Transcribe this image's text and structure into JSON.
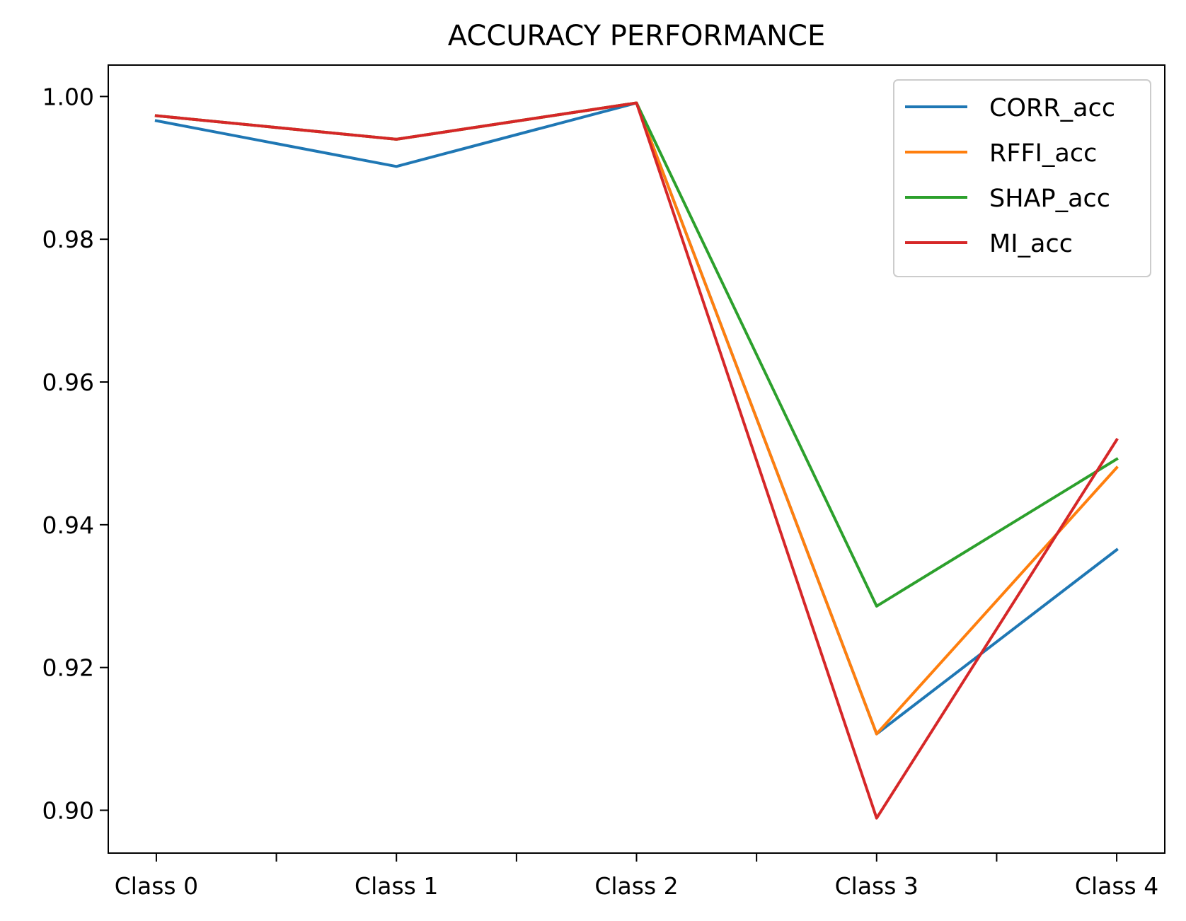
{
  "chart_data": {
    "type": "line",
    "title": "ACCURACY PERFORMANCE",
    "xlabel": "",
    "ylabel": "",
    "categories": [
      "Class 0",
      "Class 1",
      "Class 2",
      "Class 3",
      "Class 4"
    ],
    "ylim": [
      0.894,
      1.0044
    ],
    "yticks": [
      0.9,
      0.92,
      0.94,
      0.96,
      0.98,
      1.0
    ],
    "ytick_labels": [
      "0.90",
      "0.92",
      "0.94",
      "0.96",
      "0.98",
      "1.00"
    ],
    "grid": false,
    "legend_position": "top-right",
    "series": [
      {
        "name": "CORR_acc",
        "color": "#1f77b4",
        "values": [
          0.9966,
          0.9902,
          0.9991,
          0.9107,
          0.9365
        ]
      },
      {
        "name": "RFFI_acc",
        "color": "#ff7f0e",
        "values": [
          0.9973,
          0.994,
          0.9991,
          0.9107,
          0.948
        ]
      },
      {
        "name": "SHAP_acc",
        "color": "#2ca02c",
        "values": [
          0.9973,
          0.994,
          0.9991,
          0.9286,
          0.9492
        ]
      },
      {
        "name": "MI_acc",
        "color": "#d62728",
        "values": [
          0.9973,
          0.994,
          0.9991,
          0.8989,
          0.9519
        ]
      }
    ]
  }
}
